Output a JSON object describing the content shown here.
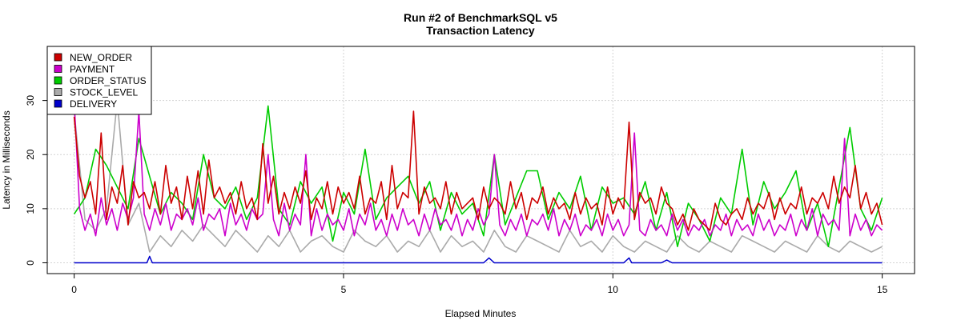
{
  "chart_data": {
    "type": "line",
    "title": "Run #2 of BenchmarkSQL v5",
    "subtitle": "Transaction Latency",
    "xlabel": "Elapsed Minutes",
    "ylabel": "Latency in Milliseconds",
    "xlim": [
      -0.5,
      15.6
    ],
    "ylim": [
      -2,
      40
    ],
    "xticks": [
      0,
      5,
      10,
      15
    ],
    "yticks": [
      0,
      10,
      20,
      30
    ],
    "grid": true,
    "legend_position": "top-left",
    "series": [
      {
        "name": "NEW_ORDER",
        "color": "#cc0000",
        "x": [
          0.0,
          0.1,
          0.2,
          0.3,
          0.4,
          0.5,
          0.6,
          0.7,
          0.8,
          0.9,
          1.0,
          1.1,
          1.2,
          1.3,
          1.4,
          1.5,
          1.6,
          1.7,
          1.8,
          1.9,
          2.0,
          2.1,
          2.2,
          2.3,
          2.4,
          2.5,
          2.6,
          2.7,
          2.8,
          2.9,
          3.0,
          3.1,
          3.2,
          3.3,
          3.4,
          3.5,
          3.6,
          3.7,
          3.8,
          3.9,
          4.0,
          4.1,
          4.2,
          4.3,
          4.4,
          4.5,
          4.6,
          4.7,
          4.8,
          4.9,
          5.0,
          5.1,
          5.2,
          5.3,
          5.4,
          5.5,
          5.6,
          5.7,
          5.8,
          5.9,
          6.0,
          6.1,
          6.2,
          6.3,
          6.4,
          6.5,
          6.6,
          6.7,
          6.8,
          6.9,
          7.0,
          7.1,
          7.2,
          7.3,
          7.4,
          7.5,
          7.6,
          7.7,
          7.8,
          7.9,
          8.0,
          8.1,
          8.2,
          8.3,
          8.4,
          8.5,
          8.6,
          8.7,
          8.8,
          8.9,
          9.0,
          9.1,
          9.2,
          9.3,
          9.4,
          9.5,
          9.6,
          9.7,
          9.8,
          9.9,
          10.0,
          10.1,
          10.2,
          10.3,
          10.4,
          10.5,
          10.6,
          10.7,
          10.8,
          10.9,
          11.0,
          11.1,
          11.2,
          11.3,
          11.4,
          11.5,
          11.6,
          11.7,
          11.8,
          11.9,
          12.0,
          12.1,
          12.2,
          12.3,
          12.4,
          12.5,
          12.6,
          12.7,
          12.8,
          12.9,
          13.0,
          13.1,
          13.2,
          13.3,
          13.4,
          13.5,
          13.6,
          13.7,
          13.8,
          13.9,
          14.0,
          14.1,
          14.2,
          14.3,
          14.4,
          14.5,
          14.6,
          14.7,
          14.8,
          14.9,
          15.0
        ],
        "y": [
          27,
          16,
          12,
          15,
          9,
          24,
          8,
          14,
          11,
          18,
          7,
          15,
          12,
          13,
          10,
          15,
          9,
          18,
          11,
          14,
          8,
          16,
          10,
          17,
          9,
          19,
          12,
          14,
          11,
          13,
          9,
          15,
          10,
          12,
          8,
          22,
          11,
          16,
          9,
          13,
          10,
          14,
          11,
          17,
          8,
          12,
          10,
          15,
          9,
          14,
          11,
          13,
          10,
          16,
          9,
          12,
          11,
          15,
          8,
          18,
          10,
          13,
          12,
          28,
          9,
          14,
          11,
          12,
          10,
          15,
          9,
          13,
          10,
          11,
          12,
          8,
          14,
          10,
          12,
          11,
          9,
          15,
          10,
          13,
          8,
          12,
          11,
          14,
          9,
          12,
          10,
          11,
          8,
          13,
          9,
          12,
          10,
          11,
          7,
          14,
          9,
          12,
          10,
          26,
          8,
          13,
          11,
          12,
          9,
          14,
          11,
          10,
          7,
          9,
          6,
          10,
          8,
          7,
          6,
          11,
          8,
          7,
          9,
          10,
          8,
          12,
          9,
          11,
          10,
          13,
          8,
          12,
          9,
          11,
          10,
          14,
          9,
          12,
          11,
          13,
          10,
          16,
          11,
          14,
          12,
          18,
          10,
          13,
          9,
          11,
          7
        ]
      },
      {
        "name": "PAYMENT",
        "color": "#cc00cc",
        "x": [
          0.0,
          0.1,
          0.2,
          0.3,
          0.4,
          0.5,
          0.6,
          0.7,
          0.8,
          0.9,
          1.0,
          1.1,
          1.2,
          1.3,
          1.4,
          1.5,
          1.6,
          1.7,
          1.8,
          1.9,
          2.0,
          2.1,
          2.2,
          2.3,
          2.4,
          2.5,
          2.6,
          2.7,
          2.8,
          2.9,
          3.0,
          3.1,
          3.2,
          3.3,
          3.4,
          3.5,
          3.6,
          3.7,
          3.8,
          3.9,
          4.0,
          4.1,
          4.2,
          4.3,
          4.4,
          4.5,
          4.6,
          4.7,
          4.8,
          4.9,
          5.0,
          5.1,
          5.2,
          5.3,
          5.4,
          5.5,
          5.6,
          5.7,
          5.8,
          5.9,
          6.0,
          6.1,
          6.2,
          6.3,
          6.4,
          6.5,
          6.6,
          6.7,
          6.8,
          6.9,
          7.0,
          7.1,
          7.2,
          7.3,
          7.4,
          7.5,
          7.6,
          7.7,
          7.8,
          7.9,
          8.0,
          8.1,
          8.2,
          8.3,
          8.4,
          8.5,
          8.6,
          8.7,
          8.8,
          8.9,
          9.0,
          9.1,
          9.2,
          9.3,
          9.4,
          9.5,
          9.6,
          9.7,
          9.8,
          9.9,
          10.0,
          10.1,
          10.2,
          10.3,
          10.4,
          10.5,
          10.6,
          10.7,
          10.8,
          10.9,
          11.0,
          11.1,
          11.2,
          11.3,
          11.4,
          11.5,
          11.6,
          11.7,
          11.8,
          11.9,
          12.0,
          12.1,
          12.2,
          12.3,
          12.4,
          12.5,
          12.6,
          12.7,
          12.8,
          12.9,
          13.0,
          13.1,
          13.2,
          13.3,
          13.4,
          13.5,
          13.6,
          13.7,
          13.8,
          13.9,
          14.0,
          14.1,
          14.2,
          14.3,
          14.4,
          14.5,
          14.6,
          14.7,
          14.8,
          14.9,
          15.0
        ],
        "y": [
          30,
          10,
          6,
          9,
          5,
          12,
          7,
          10,
          6,
          11,
          8,
          12,
          28,
          9,
          6,
          10,
          7,
          11,
          6,
          9,
          8,
          10,
          7,
          12,
          6,
          9,
          8,
          10,
          5,
          11,
          7,
          9,
          6,
          10,
          8,
          9,
          20,
          8,
          5,
          11,
          6,
          9,
          7,
          20,
          5,
          10,
          6,
          9,
          7,
          8,
          6,
          10,
          5,
          9,
          7,
          11,
          6,
          8,
          5,
          9,
          6,
          10,
          7,
          8,
          5,
          9,
          6,
          10,
          7,
          8,
          6,
          9,
          5,
          8,
          6,
          10,
          7,
          9,
          20,
          7,
          5,
          8,
          6,
          9,
          5,
          8,
          7,
          9,
          6,
          10,
          5,
          8,
          6,
          9,
          5,
          7,
          6,
          8,
          5,
          9,
          6,
          8,
          5,
          7,
          24,
          6,
          5,
          8,
          6,
          7,
          5,
          9,
          6,
          8,
          5,
          7,
          6,
          8,
          5,
          7,
          6,
          9,
          5,
          8,
          6,
          7,
          5,
          9,
          6,
          8,
          5,
          7,
          6,
          9,
          5,
          8,
          6,
          10,
          5,
          9,
          7,
          8,
          6,
          23,
          5,
          9,
          6,
          8,
          5,
          7,
          6
        ]
      },
      {
        "name": "ORDER_STATUS",
        "color": "#00cc00",
        "x": [
          0.0,
          0.2,
          0.4,
          0.6,
          0.8,
          1.0,
          1.2,
          1.4,
          1.6,
          1.8,
          2.0,
          2.2,
          2.4,
          2.6,
          2.8,
          3.0,
          3.2,
          3.4,
          3.6,
          3.8,
          4.0,
          4.2,
          4.4,
          4.6,
          4.8,
          5.0,
          5.2,
          5.4,
          5.6,
          5.8,
          6.0,
          6.2,
          6.4,
          6.6,
          6.8,
          7.0,
          7.2,
          7.4,
          7.6,
          7.8,
          8.0,
          8.2,
          8.4,
          8.6,
          8.8,
          9.0,
          9.2,
          9.4,
          9.6,
          9.8,
          10.0,
          10.2,
          10.4,
          10.6,
          10.8,
          11.0,
          11.2,
          11.4,
          11.6,
          11.8,
          12.0,
          12.2,
          12.4,
          12.6,
          12.8,
          13.0,
          13.2,
          13.4,
          13.6,
          13.8,
          14.0,
          14.2,
          14.4,
          14.6,
          14.8,
          15.0
        ],
        "y": [
          9,
          12,
          21,
          18,
          14,
          10,
          23,
          16,
          9,
          13,
          11,
          8,
          20,
          12,
          10,
          14,
          8,
          12,
          29,
          10,
          7,
          15,
          11,
          14,
          4,
          13,
          9,
          21,
          8,
          12,
          14,
          16,
          11,
          15,
          6,
          13,
          9,
          11,
          5,
          20,
          7,
          12,
          17,
          17,
          8,
          13,
          10,
          16,
          6,
          14,
          11,
          12,
          9,
          15,
          6,
          13,
          3,
          11,
          8,
          4,
          12,
          9,
          21,
          7,
          15,
          10,
          13,
          17,
          6,
          11,
          3,
          14,
          25,
          10,
          6,
          12
        ]
      },
      {
        "name": "STOCK_LEVEL",
        "color": "#aaaaaa",
        "x": [
          0.0,
          0.2,
          0.4,
          0.6,
          0.8,
          1.0,
          1.2,
          1.4,
          1.6,
          1.8,
          2.0,
          2.2,
          2.4,
          2.6,
          2.8,
          3.0,
          3.2,
          3.4,
          3.6,
          3.8,
          4.0,
          4.2,
          4.4,
          4.6,
          4.8,
          5.0,
          5.2,
          5.4,
          5.6,
          5.8,
          6.0,
          6.2,
          6.4,
          6.6,
          6.8,
          7.0,
          7.2,
          7.4,
          7.6,
          7.8,
          8.0,
          8.2,
          8.4,
          8.6,
          8.8,
          9.0,
          9.2,
          9.4,
          9.6,
          9.8,
          10.0,
          10.2,
          10.4,
          10.6,
          10.8,
          11.0,
          11.2,
          11.4,
          11.6,
          11.8,
          12.0,
          12.2,
          12.4,
          12.6,
          12.8,
          13.0,
          13.2,
          13.4,
          13.6,
          13.8,
          14.0,
          14.2,
          14.4,
          14.6,
          14.8,
          15.0
        ],
        "y": [
          28,
          8,
          6,
          10,
          30,
          7,
          11,
          2,
          5,
          3,
          6,
          4,
          7,
          5,
          3,
          6,
          4,
          2,
          5,
          3,
          6,
          2,
          4,
          5,
          3,
          2,
          6,
          4,
          3,
          5,
          2,
          4,
          3,
          6,
          2,
          5,
          3,
          4,
          2,
          6,
          3,
          2,
          5,
          4,
          3,
          2,
          6,
          3,
          4,
          2,
          5,
          3,
          2,
          4,
          3,
          2,
          5,
          3,
          2,
          4,
          3,
          2,
          5,
          4,
          3,
          2,
          4,
          3,
          2,
          5,
          3,
          2,
          4,
          3,
          2,
          3
        ]
      },
      {
        "name": "DELIVERY",
        "color": "#0000cc",
        "x": [
          0.0,
          1.35,
          1.4,
          1.45,
          7.6,
          7.7,
          7.8,
          10.2,
          10.3,
          10.35,
          10.9,
          11.0,
          11.1,
          15.0
        ],
        "y": [
          0,
          0,
          1.2,
          0,
          0,
          0.9,
          0,
          0,
          0.9,
          0,
          0,
          0.5,
          0,
          0
        ]
      }
    ]
  }
}
